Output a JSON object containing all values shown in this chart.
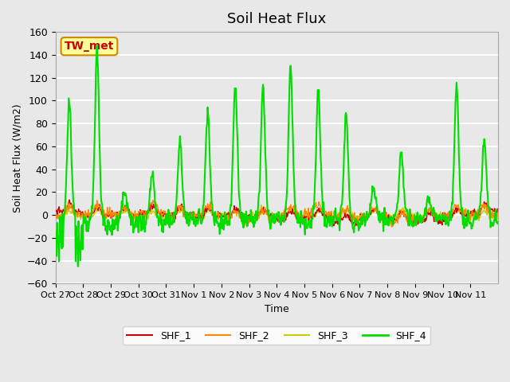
{
  "title": "Soil Heat Flux",
  "ylabel": "Soil Heat Flux (W/m2)",
  "xlabel": "Time",
  "ylim": [
    -60,
    160
  ],
  "yticks": [
    -60,
    -40,
    -20,
    0,
    20,
    40,
    60,
    80,
    100,
    120,
    140,
    160
  ],
  "series_names": [
    "SHF_1",
    "SHF_2",
    "SHF_3",
    "SHF_4"
  ],
  "colors": {
    "SHF_1": "#cc0000",
    "SHF_2": "#ff8800",
    "SHF_3": "#cccc00",
    "SHF_4": "#00dd00"
  },
  "line_widths": {
    "SHF_1": 1.0,
    "SHF_2": 1.0,
    "SHF_3": 1.0,
    "SHF_4": 1.5
  },
  "plot_bg_color": "#e8e8e8",
  "grid_color": "#ffffff",
  "station_label": "TW_met",
  "station_label_color": "#cc0000",
  "station_box_color": "#ffff99",
  "station_box_edge": "#cc8800",
  "xtick_labels": [
    "Oct 27",
    "Oct 28",
    "Oct 29",
    "Oct 30",
    "Oct 31",
    "Nov 1",
    "Nov 2",
    "Nov 3",
    "Nov 4",
    "Nov 5",
    "Nov 6",
    "Nov 7",
    "Nov 8",
    "Nov 9",
    "Nov 10",
    "Nov 11"
  ],
  "n_days": 16,
  "n_points_per_day": 48,
  "peak_heights": [
    99,
    145,
    19,
    35,
    65,
    92,
    115,
    113,
    131,
    111,
    89,
    25,
    56,
    14,
    112,
    67
  ],
  "night_depth": [
    -42,
    -15,
    -15,
    -15,
    -10,
    -10,
    -10,
    -10,
    -10,
    -10,
    -10,
    -10,
    -10,
    -10,
    -10,
    -10
  ]
}
